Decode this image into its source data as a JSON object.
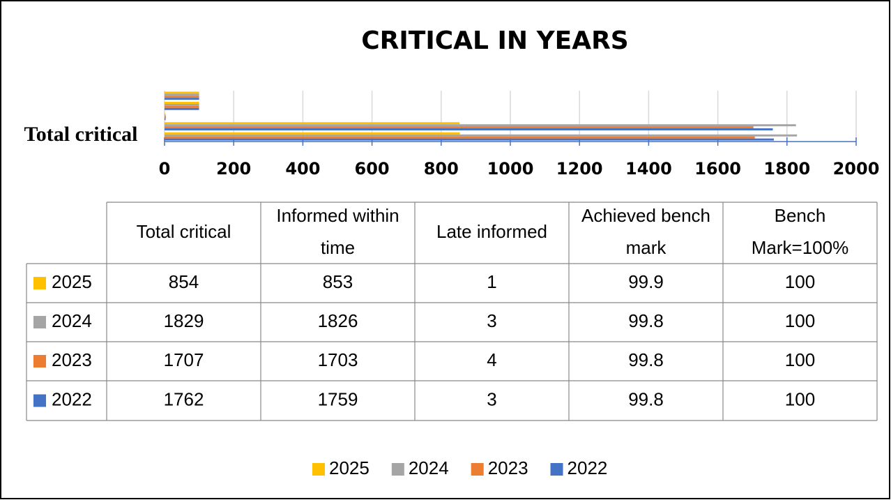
{
  "chart_data": {
    "type": "bar",
    "orientation": "horizontal",
    "title": "CRITICAL IN YEARS",
    "categories": [
      "Total critical",
      "Informed within time",
      "Late informed",
      "Achieved bench mark",
      "Bench Mark=100%"
    ],
    "series": [
      {
        "name": "2025",
        "color": "#ffc000",
        "values": [
          854,
          853,
          1,
          99.9,
          100
        ]
      },
      {
        "name": "2024",
        "color": "#a5a5a5",
        "values": [
          1829,
          1826,
          3,
          99.8,
          100
        ]
      },
      {
        "name": "2023",
        "color": "#ed7d31",
        "values": [
          1707,
          1703,
          4,
          99.8,
          100
        ]
      },
      {
        "name": "2022",
        "color": "#4472c4",
        "values": [
          1762,
          1759,
          3,
          99.8,
          100
        ]
      }
    ],
    "xlim": [
      0,
      2000
    ],
    "xticks": [
      0,
      200,
      400,
      600,
      800,
      1000,
      1200,
      1400,
      1600,
      1800,
      2000
    ],
    "grid": true,
    "legend": "bottom",
    "data_table": true
  }
}
